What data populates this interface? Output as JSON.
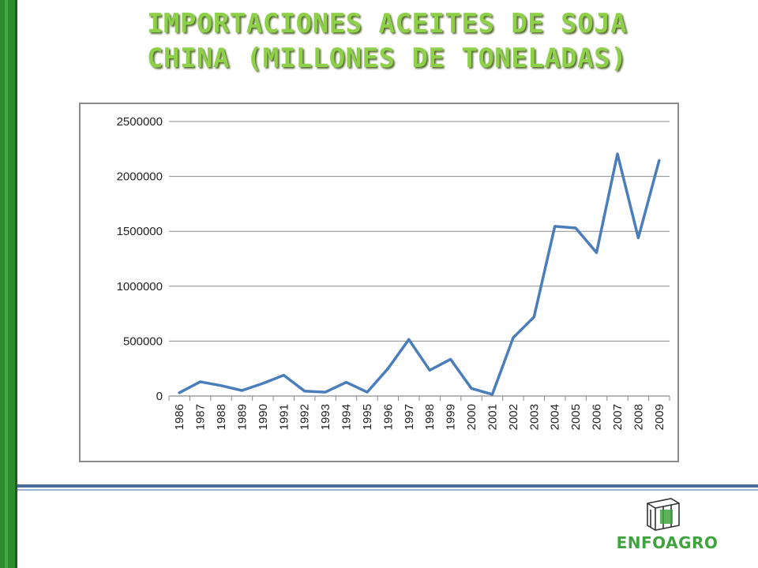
{
  "slide": {
    "title_line1": "IMPORTACIONES ACEITES DE SOJA",
    "title_line2": "CHINA (MILLONES DE TONELADAS)",
    "logo_text": "ENFOAGRO"
  },
  "colors": {
    "title": "#8ed04a",
    "line": "#4a7ebb",
    "left_bar": "#2e8b2e",
    "rule": "#4a6b94"
  },
  "chart_data": {
    "type": "line",
    "x": [
      "1986",
      "1987",
      "1988",
      "1989",
      "1990",
      "1991",
      "1992",
      "1993",
      "1994",
      "1995",
      "1996",
      "1997",
      "1998",
      "1999",
      "2000",
      "2001",
      "2002",
      "2003",
      "2004",
      "2005",
      "2006",
      "2007",
      "2008",
      "2009"
    ],
    "series": [
      {
        "values": [
          30000,
          130000,
          95000,
          50000,
          115000,
          190000,
          45000,
          35000,
          125000,
          35000,
          250000,
          515000,
          235000,
          335000,
          70000,
          15000,
          530000,
          720000,
          1545000,
          1530000,
          1305000,
          2205000,
          1440000,
          2145000
        ]
      }
    ],
    "yticks": [
      "0",
      "500000",
      "1000000",
      "1500000",
      "2000000",
      "2500000"
    ],
    "ylim": [
      0,
      2500000
    ],
    "grid": true,
    "legend": "none"
  }
}
